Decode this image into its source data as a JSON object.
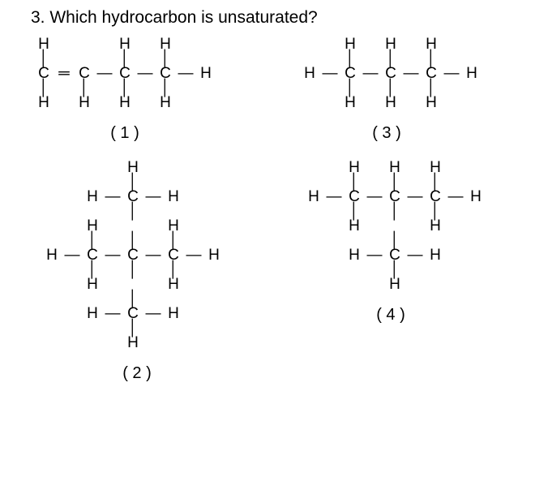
{
  "question": {
    "number": "3.",
    "text": "Which hydrocarbon is unsaturated?"
  },
  "symbols": {
    "H": "H",
    "C": "C",
    "single": "—",
    "double": "═",
    "vbond": "│"
  },
  "options": {
    "opt1": {
      "label": "( 1 )"
    },
    "opt2": {
      "label": "( 2 )"
    },
    "opt3": {
      "label": "( 3 )"
    },
    "opt4": {
      "label": "( 4 )"
    }
  }
}
